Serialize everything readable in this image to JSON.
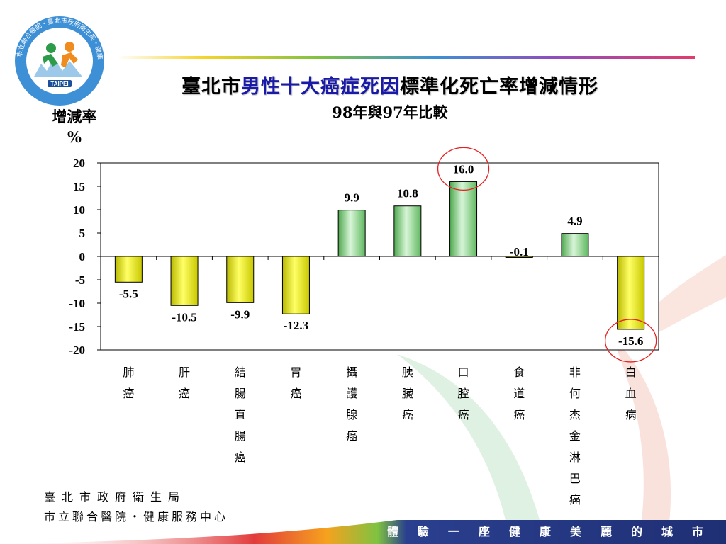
{
  "title": {
    "prefix": "臺北市",
    "highlight": "男性十大癌症死因",
    "suffix": "標準化死亡率增減情形",
    "subtitle": "98年與97年比較"
  },
  "footer": {
    "line1": "臺北市政府衛生局",
    "line2": "市立聯合醫院・健康服務中心"
  },
  "slogan": [
    "體",
    "驗",
    "一",
    "座",
    "健",
    "康",
    "美",
    "麗",
    "的",
    "城",
    "市"
  ],
  "logo": {
    "center_text": "TAIPEI",
    "ring_text": "市立聯合醫院・臺北市政府衛生局・健康服務中心"
  },
  "colors": {
    "positive": "#7cd17c",
    "negative": "#e6e600",
    "highlight_circle": "#e62020",
    "title_highlight": "#1a1aa8",
    "bottom_bar": "#2a3f8f"
  },
  "chart_data": {
    "type": "bar",
    "ylabel": "增減率 %",
    "ylabel_lines": [
      "增減率",
      "%"
    ],
    "ylim": [
      -20,
      20
    ],
    "yticks": [
      20,
      15,
      10,
      5,
      0,
      -5,
      -10,
      -15,
      -20
    ],
    "categories": [
      "肺癌",
      "肝癌",
      "結腸直腸癌",
      "胃癌",
      "攝護腺癌",
      "胰臟癌",
      "口腔癌",
      "食道癌",
      "非何杰金淋巴癌",
      "白血病"
    ],
    "values": [
      -5.5,
      -10.5,
      -9.9,
      -12.3,
      9.9,
      10.8,
      16.0,
      -0.1,
      4.9,
      -15.6
    ],
    "data_labels": [
      "-5.5",
      "-10.5",
      "-9.9",
      "-12.3",
      "9.9",
      "10.8",
      "16.0",
      "-0.1",
      "4.9",
      "-15.6"
    ],
    "highlighted": [
      "口腔癌",
      "白血病"
    ],
    "grid": false,
    "legend": "none"
  }
}
